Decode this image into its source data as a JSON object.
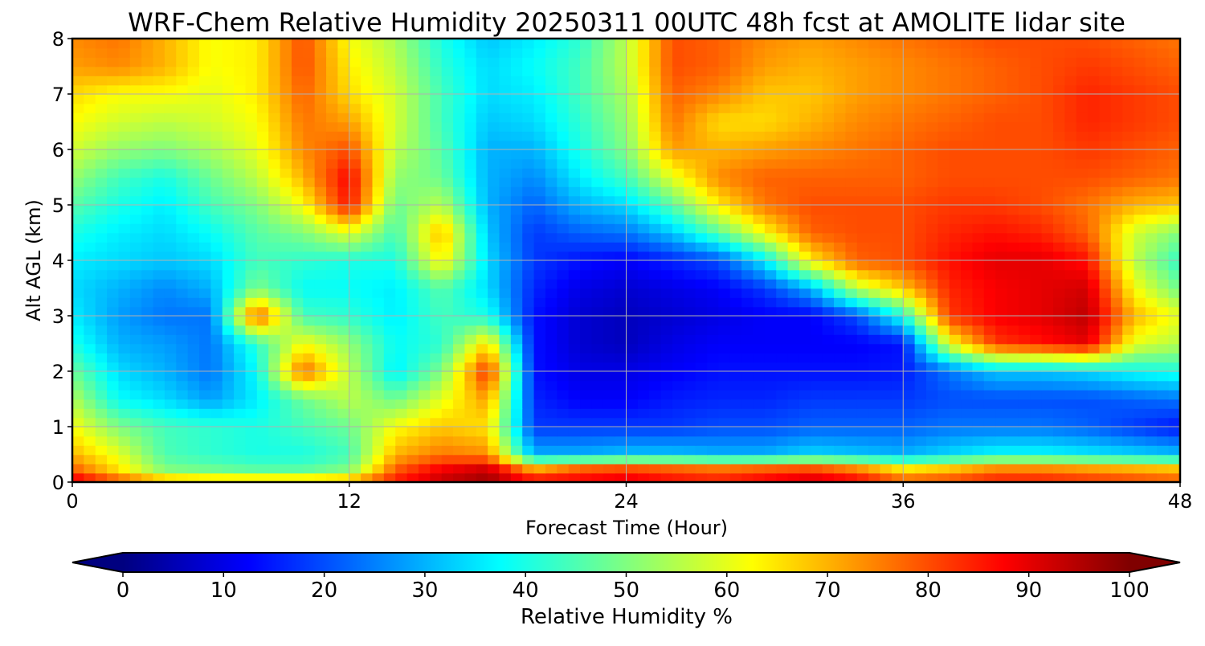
{
  "chart_data": {
    "type": "heatmap",
    "title": "WRF-Chem Relative Humidity 20250311 00UTC 48h fcst at AMOLITE lidar site",
    "xlabel": "Forecast Time (Hour)",
    "ylabel": "Alt AGL (km)",
    "xlim": [
      0,
      48
    ],
    "ylim": [
      0,
      8
    ],
    "x_ticks": [
      0,
      12,
      24,
      36,
      48
    ],
    "y_ticks": [
      0,
      1,
      2,
      3,
      4,
      5,
      6,
      7,
      8
    ],
    "grid": true,
    "colormap": "jet",
    "colorbar": {
      "label": "Relative Humidity %",
      "min": 0,
      "max": 100,
      "ticks": [
        0,
        10,
        20,
        30,
        40,
        50,
        60,
        70,
        80,
        90,
        100
      ],
      "extend": "both",
      "placement": "bottom"
    },
    "x": [
      0,
      2,
      4,
      6,
      8,
      10,
      12,
      14,
      16,
      18,
      20,
      22,
      24,
      26,
      28,
      30,
      32,
      34,
      36,
      38,
      40,
      42,
      44,
      46,
      48
    ],
    "y": [
      0,
      0.25,
      0.5,
      1,
      1.5,
      2,
      2.5,
      3,
      3.5,
      4,
      4.5,
      5,
      5.5,
      6,
      6.5,
      7,
      7.5,
      8
    ],
    "z": [
      [
        92,
        80,
        72,
        70,
        70,
        70,
        72,
        86,
        94,
        98,
        90,
        90,
        92,
        88,
        86,
        90,
        94,
        90,
        80,
        82,
        86,
        86,
        84,
        82,
        80
      ],
      [
        78,
        65,
        50,
        48,
        46,
        46,
        50,
        78,
        88,
        92,
        70,
        78,
        80,
        78,
        76,
        78,
        80,
        74,
        64,
        68,
        74,
        74,
        72,
        70,
        68
      ],
      [
        70,
        60,
        45,
        42,
        40,
        40,
        44,
        70,
        76,
        74,
        30,
        30,
        32,
        32,
        30,
        30,
        34,
        32,
        30,
        34,
        38,
        38,
        36,
        34,
        32
      ],
      [
        62,
        50,
        44,
        42,
        40,
        44,
        48,
        62,
        68,
        65,
        18,
        18,
        18,
        18,
        20,
        20,
        22,
        22,
        22,
        24,
        24,
        24,
        22,
        18,
        14
      ],
      [
        55,
        38,
        34,
        28,
        36,
        48,
        56,
        48,
        60,
        72,
        16,
        12,
        12,
        15,
        16,
        16,
        18,
        18,
        18,
        20,
        20,
        20,
        20,
        22,
        24
      ],
      [
        48,
        34,
        30,
        24,
        38,
        78,
        56,
        36,
        50,
        84,
        14,
        10,
        10,
        12,
        14,
        14,
        14,
        14,
        15,
        24,
        32,
        32,
        34,
        38,
        40
      ],
      [
        40,
        30,
        28,
        24,
        42,
        62,
        52,
        38,
        42,
        66,
        14,
        8,
        6,
        10,
        12,
        12,
        12,
        12,
        14,
        60,
        82,
        86,
        90,
        60,
        55
      ],
      [
        36,
        28,
        24,
        24,
        80,
        44,
        42,
        36,
        44,
        40,
        14,
        8,
        6,
        8,
        10,
        12,
        12,
        20,
        40,
        82,
        88,
        90,
        94,
        70,
        60
      ],
      [
        34,
        30,
        26,
        30,
        50,
        38,
        38,
        36,
        46,
        34,
        16,
        10,
        8,
        10,
        12,
        18,
        30,
        56,
        68,
        84,
        88,
        90,
        92,
        62,
        48
      ],
      [
        36,
        34,
        32,
        34,
        44,
        42,
        40,
        40,
        64,
        34,
        18,
        14,
        12,
        16,
        20,
        36,
        64,
        78,
        80,
        86,
        90,
        90,
        86,
        56,
        42
      ],
      [
        40,
        36,
        34,
        38,
        46,
        50,
        60,
        44,
        70,
        32,
        18,
        22,
        24,
        32,
        46,
        62,
        78,
        80,
        80,
        84,
        86,
        84,
        78,
        58,
        50
      ],
      [
        46,
        40,
        36,
        44,
        50,
        62,
        86,
        48,
        56,
        30,
        22,
        30,
        34,
        46,
        64,
        76,
        80,
        80,
        80,
        82,
        82,
        80,
        76,
        70,
        68
      ],
      [
        52,
        44,
        40,
        48,
        56,
        70,
        88,
        52,
        48,
        30,
        26,
        36,
        44,
        60,
        74,
        78,
        78,
        78,
        78,
        80,
        80,
        80,
        80,
        78,
        76
      ],
      [
        58,
        52,
        50,
        54,
        60,
        74,
        80,
        56,
        46,
        30,
        30,
        40,
        50,
        72,
        70,
        72,
        74,
        76,
        78,
        80,
        80,
        80,
        82,
        80,
        78
      ],
      [
        62,
        58,
        56,
        58,
        62,
        76,
        72,
        58,
        44,
        32,
        34,
        42,
        52,
        76,
        66,
        66,
        70,
        74,
        76,
        78,
        80,
        80,
        84,
        82,
        80
      ],
      [
        66,
        62,
        62,
        60,
        64,
        78,
        66,
        58,
        44,
        34,
        36,
        44,
        54,
        78,
        74,
        68,
        68,
        72,
        74,
        76,
        78,
        80,
        84,
        82,
        80
      ],
      [
        72,
        74,
        70,
        62,
        64,
        80,
        64,
        56,
        42,
        34,
        38,
        44,
        56,
        80,
        78,
        72,
        70,
        72,
        74,
        76,
        78,
        80,
        82,
        80,
        78
      ],
      [
        74,
        76,
        70,
        62,
        64,
        80,
        62,
        54,
        40,
        32,
        36,
        42,
        56,
        80,
        78,
        74,
        72,
        74,
        76,
        78,
        80,
        80,
        80,
        78,
        76
      ]
    ]
  }
}
